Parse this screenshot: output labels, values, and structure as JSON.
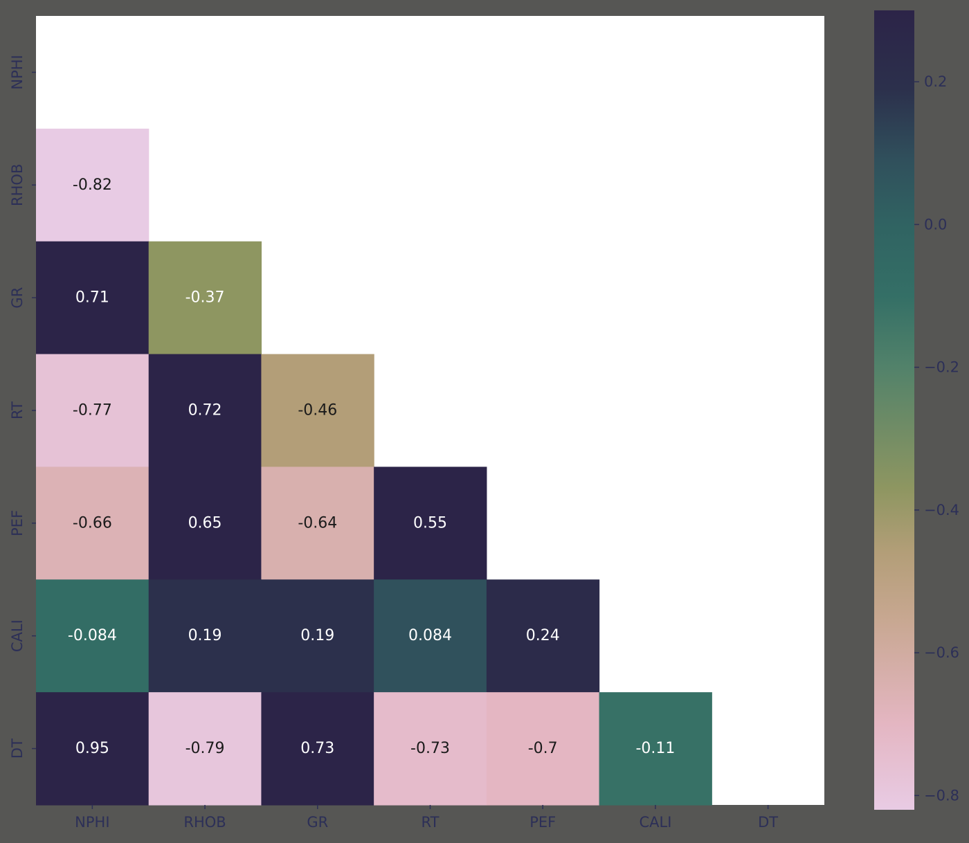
{
  "chart_data": {
    "type": "heatmap",
    "variables": [
      "NPHI",
      "RHOB",
      "GR",
      "RT",
      "PEF",
      "CALI",
      "DT"
    ],
    "mask": "upper-triangle-including-diagonal",
    "cells": [
      {
        "row": "RHOB",
        "col": "NPHI",
        "value": -0.82,
        "label": "-0.82"
      },
      {
        "row": "GR",
        "col": "NPHI",
        "value": 0.71,
        "label": "0.71"
      },
      {
        "row": "GR",
        "col": "RHOB",
        "value": -0.37,
        "label": "-0.37"
      },
      {
        "row": "RT",
        "col": "NPHI",
        "value": -0.77,
        "label": "-0.77"
      },
      {
        "row": "RT",
        "col": "RHOB",
        "value": 0.72,
        "label": "0.72"
      },
      {
        "row": "RT",
        "col": "GR",
        "value": -0.46,
        "label": "-0.46"
      },
      {
        "row": "PEF",
        "col": "NPHI",
        "value": -0.66,
        "label": "-0.66"
      },
      {
        "row": "PEF",
        "col": "RHOB",
        "value": 0.65,
        "label": "0.65"
      },
      {
        "row": "PEF",
        "col": "GR",
        "value": -0.64,
        "label": "-0.64"
      },
      {
        "row": "PEF",
        "col": "RT",
        "value": 0.55,
        "label": "0.55"
      },
      {
        "row": "CALI",
        "col": "NPHI",
        "value": -0.084,
        "label": "-0.084"
      },
      {
        "row": "CALI",
        "col": "RHOB",
        "value": 0.19,
        "label": "0.19"
      },
      {
        "row": "CALI",
        "col": "GR",
        "value": 0.19,
        "label": "0.19"
      },
      {
        "row": "CALI",
        "col": "RT",
        "value": 0.084,
        "label": "0.084"
      },
      {
        "row": "CALI",
        "col": "PEF",
        "value": 0.24,
        "label": "0.24"
      },
      {
        "row": "DT",
        "col": "NPHI",
        "value": 0.95,
        "label": "0.95"
      },
      {
        "row": "DT",
        "col": "RHOB",
        "value": -0.79,
        "label": "-0.79"
      },
      {
        "row": "DT",
        "col": "GR",
        "value": 0.73,
        "label": "0.73"
      },
      {
        "row": "DT",
        "col": "RT",
        "value": -0.73,
        "label": "-0.73"
      },
      {
        "row": "DT",
        "col": "PEF",
        "value": -0.7,
        "label": "-0.7"
      },
      {
        "row": "DT",
        "col": "CALI",
        "value": -0.11,
        "label": "-0.11"
      }
    ],
    "colorbar": {
      "range": [
        -0.82,
        0.3
      ],
      "ticks": [
        0.2,
        0.0,
        -0.2,
        -0.4,
        -0.6,
        -0.8
      ],
      "tick_labels": [
        "0.2",
        "0.0",
        "−0.2",
        "−0.4",
        "−0.6",
        "−0.8"
      ],
      "colormap": "cubehelix-reversed",
      "stops": [
        {
          "v": -0.82,
          "color": "#e8cbe4"
        },
        {
          "v": -0.7,
          "color": "#e4b6c2"
        },
        {
          "v": -0.55,
          "color": "#c7a790"
        },
        {
          "v": -0.46,
          "color": "#b39e78"
        },
        {
          "v": -0.37,
          "color": "#8e9661"
        },
        {
          "v": -0.2,
          "color": "#52826a"
        },
        {
          "v": -0.1,
          "color": "#346f66"
        },
        {
          "v": 0.0,
          "color": "#306362"
        },
        {
          "v": 0.09,
          "color": "#30505c"
        },
        {
          "v": 0.19,
          "color": "#2c304c"
        },
        {
          "v": 0.3,
          "color": "#2c2448"
        }
      ]
    },
    "colors": {
      "background": "#565654",
      "plot_area": "#ffffff",
      "tick_text": "#2c2f57",
      "light_text": "#ffffff",
      "dark_text": "#1a1a1a"
    }
  }
}
